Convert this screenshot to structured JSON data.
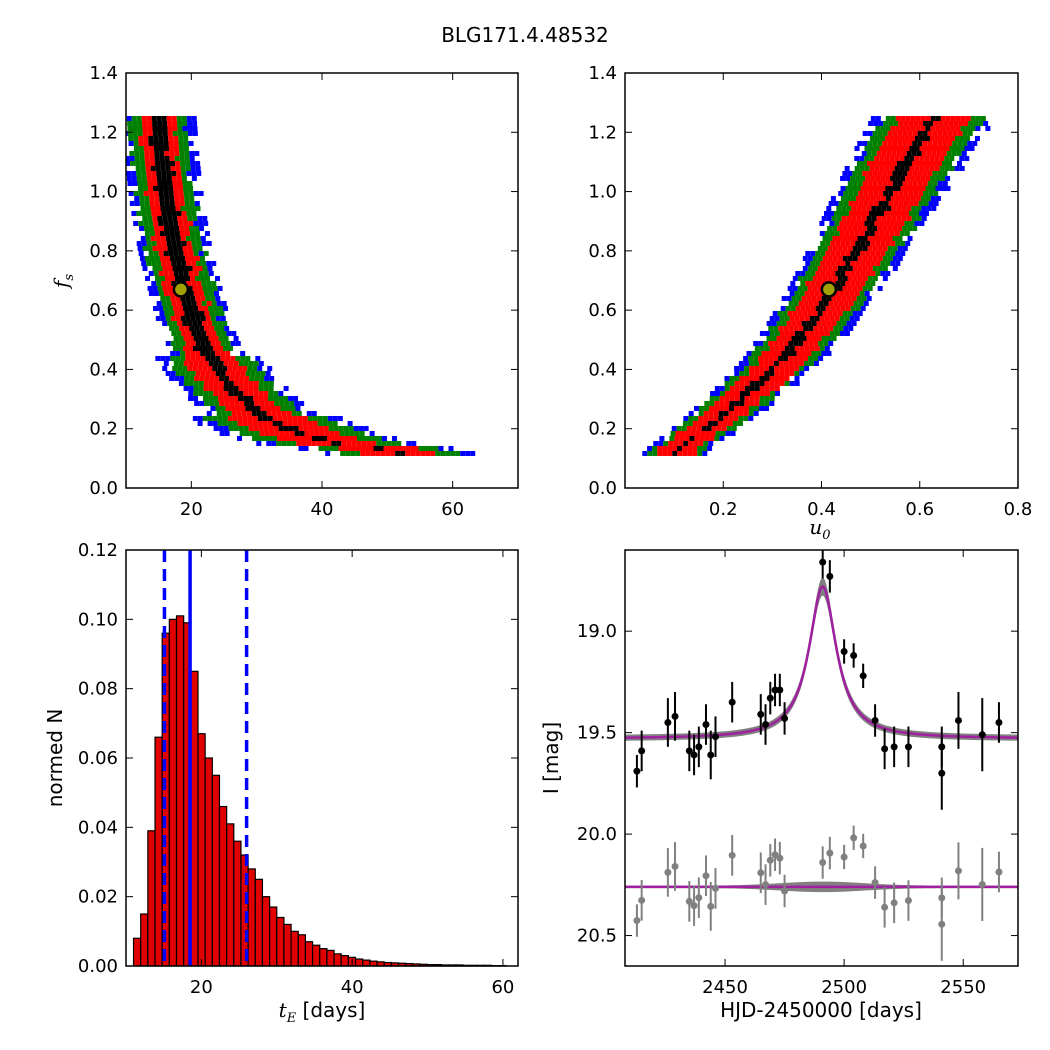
{
  "figure": {
    "title": "BLG171.4.48532"
  },
  "colors": {
    "sigma1": "#000000",
    "sigma2": "#ff0000",
    "sigma3": "#008000",
    "sigma4": "#0000ff",
    "hist_fill": "#e00000",
    "marker_fill": "#a0a000",
    "model": "#a020a0",
    "model_band": "#808080",
    "residual": "#808080"
  },
  "chart_data": [
    {
      "type": "heatmap",
      "panel": "top-left",
      "xlabel": "",
      "ylabel_main": "f",
      "ylabel_sub": "s",
      "xlim": [
        10,
        70
      ],
      "ylim": [
        0.0,
        1.4
      ],
      "xticks": [
        "20",
        "40",
        "60"
      ],
      "yticks": [
        "0.0",
        "0.2",
        "0.4",
        "0.6",
        "0.8",
        "1.0",
        "1.2",
        "1.4"
      ],
      "marker": {
        "x": 18.4,
        "y": 0.67
      },
      "ridge": [
        [
          15.0,
          1.25
        ],
        [
          15.5,
          1.1
        ],
        [
          16.3,
          0.95
        ],
        [
          17.5,
          0.8
        ],
        [
          19.0,
          0.67
        ],
        [
          20.5,
          0.55
        ],
        [
          22.5,
          0.45
        ],
        [
          25.0,
          0.37
        ],
        [
          28.0,
          0.3
        ],
        [
          32.0,
          0.23
        ],
        [
          37.0,
          0.18
        ],
        [
          44.0,
          0.14
        ],
        [
          52.0,
          0.12
        ],
        [
          58.0,
          0.12
        ]
      ],
      "widths_sigma_levels": [
        1,
        2,
        3,
        4
      ]
    },
    {
      "type": "heatmap",
      "panel": "top-right",
      "xlabel_main": "u",
      "xlabel_sub": "0",
      "xlim": [
        0.0,
        0.8
      ],
      "ylim": [
        0.0,
        1.4
      ],
      "xticks": [
        "0.2",
        "0.4",
        "0.6",
        "0.8"
      ],
      "yticks": [
        "0.0",
        "0.2",
        "0.4",
        "0.6",
        "0.8",
        "1.0",
        "1.2",
        "1.4"
      ],
      "marker": {
        "x": 0.415,
        "y": 0.67
      },
      "ridge": [
        [
          0.1,
          0.12
        ],
        [
          0.18,
          0.22
        ],
        [
          0.25,
          0.32
        ],
        [
          0.32,
          0.43
        ],
        [
          0.38,
          0.56
        ],
        [
          0.43,
          0.68
        ],
        [
          0.48,
          0.82
        ],
        [
          0.53,
          0.97
        ],
        [
          0.58,
          1.12
        ],
        [
          0.63,
          1.25
        ]
      ],
      "widths_sigma_levels": [
        1,
        2,
        3,
        4
      ]
    },
    {
      "type": "bar",
      "panel": "bottom-left",
      "xlabel_main": "t",
      "xlabel_sub": "E",
      "xlabel_rest": " [days]",
      "ylabel": "normed N",
      "xlim": [
        10,
        62
      ],
      "ylim": [
        0.0,
        0.12
      ],
      "xticks": [
        "20",
        "40",
        "60"
      ],
      "yticks": [
        "0.00",
        "0.02",
        "0.04",
        "0.06",
        "0.08",
        "0.10",
        "0.12"
      ],
      "bin_width": 0.95,
      "bin_start": 11.0,
      "values": [
        0.008,
        0.015,
        0.039,
        0.066,
        0.096,
        0.1,
        0.101,
        0.099,
        0.085,
        0.067,
        0.06,
        0.055,
        0.046,
        0.041,
        0.036,
        0.032,
        0.028,
        0.025,
        0.02,
        0.017,
        0.014,
        0.012,
        0.01,
        0.009,
        0.007,
        0.006,
        0.005,
        0.0045,
        0.0035,
        0.003,
        0.0025,
        0.002,
        0.0017,
        0.0014,
        0.0012,
        0.001,
        0.0009,
        0.0008,
        0.0007,
        0.0006,
        0.0005,
        0.0004,
        0.0004,
        0.0003,
        0.0003,
        0.0003,
        0.0002,
        0.0002,
        0.0002,
        0.0002,
        0.0001,
        0.0001
      ],
      "median": 18.5,
      "dashed": [
        15.1,
        26.0
      ]
    },
    {
      "type": "scatter",
      "panel": "bottom-right",
      "xlabel": "HJD-2450000 [days]",
      "ylabel": "I [mag]",
      "xlim": [
        2408,
        2573
      ],
      "ylim": [
        20.65,
        18.6
      ],
      "xticks": [
        "2450",
        "2500",
        "2550"
      ],
      "xtick_values": [
        2450,
        2500,
        2550
      ],
      "yticks": [
        "19.0",
        "19.5",
        "20.0",
        "20.5"
      ],
      "ytick_values": [
        19.0,
        19.5,
        20.0,
        20.5
      ],
      "model": {
        "t0": 2491.0,
        "baseline": 19.53,
        "peak": 18.78,
        "width": 7.0
      },
      "residual_baseline": 20.26,
      "points": [
        [
          2413,
          19.69,
          0.08
        ],
        [
          2415,
          19.59,
          0.1
        ],
        [
          2426,
          19.45,
          0.12
        ],
        [
          2429,
          19.42,
          0.12
        ],
        [
          2435,
          19.59,
          0.1
        ],
        [
          2437,
          19.61,
          0.1
        ],
        [
          2439,
          19.57,
          0.1
        ],
        [
          2442,
          19.46,
          0.1
        ],
        [
          2444,
          19.61,
          0.12
        ],
        [
          2446,
          19.52,
          0.1
        ],
        [
          2453,
          19.35,
          0.1
        ],
        [
          2465,
          19.41,
          0.1
        ],
        [
          2467,
          19.46,
          0.1
        ],
        [
          2469,
          19.33,
          0.08
        ],
        [
          2471,
          19.29,
          0.08
        ],
        [
          2473,
          19.29,
          0.08
        ],
        [
          2475,
          19.43,
          0.08
        ],
        [
          2491,
          18.66,
          0.08
        ],
        [
          2494,
          18.73,
          0.08
        ],
        [
          2500,
          19.1,
          0.06
        ],
        [
          2504,
          19.12,
          0.06
        ],
        [
          2508,
          19.22,
          0.06
        ],
        [
          2513,
          19.44,
          0.08
        ],
        [
          2517,
          19.58,
          0.1
        ],
        [
          2521,
          19.57,
          0.1
        ],
        [
          2527,
          19.57,
          0.1
        ],
        [
          2541,
          19.57,
          0.1
        ],
        [
          2541,
          19.7,
          0.18
        ],
        [
          2548,
          19.44,
          0.14
        ],
        [
          2558,
          19.51,
          0.18
        ],
        [
          2565,
          19.45,
          0.1
        ]
      ]
    }
  ]
}
